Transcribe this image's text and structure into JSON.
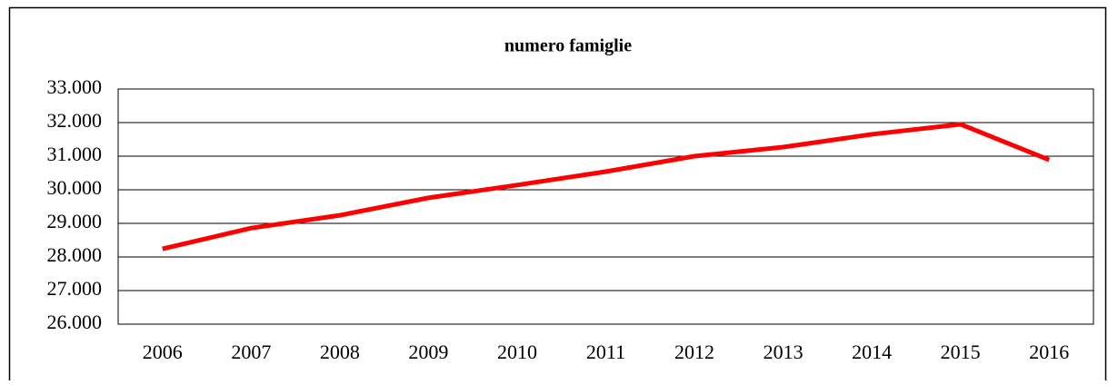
{
  "chart_data": {
    "type": "line",
    "title": "numero famiglie",
    "categories": [
      "2006",
      "2007",
      "2008",
      "2009",
      "2010",
      "2011",
      "2012",
      "2013",
      "2014",
      "2015",
      "2016"
    ],
    "series": [
      {
        "name": "numero famiglie",
        "color": "#ff0000",
        "values": [
          28240,
          28860,
          29240,
          29760,
          30140,
          30540,
          31000,
          31270,
          31650,
          31950,
          30890
        ]
      }
    ],
    "ylim": [
      26000,
      33000
    ],
    "yticks": [
      {
        "value": 26000,
        "label": "26.000"
      },
      {
        "value": 27000,
        "label": "27.000"
      },
      {
        "value": 28000,
        "label": "28.000"
      },
      {
        "value": 29000,
        "label": "29.000"
      },
      {
        "value": 30000,
        "label": "30.000"
      },
      {
        "value": 31000,
        "label": "31.000"
      },
      {
        "value": 32000,
        "label": "32.000"
      },
      {
        "value": 33000,
        "label": "33.000"
      }
    ],
    "grid": true
  }
}
